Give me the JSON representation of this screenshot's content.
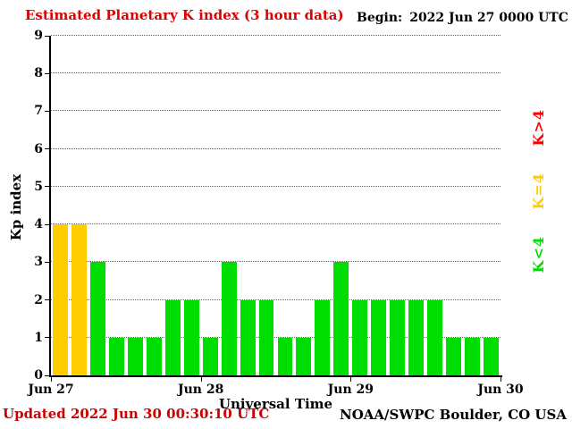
{
  "header": {
    "begin_label": "Begin:",
    "begin_value": "2022 Jun 27 0000 UTC"
  },
  "footer": {
    "updated": "Updated 2022 Jun 30 00:30:10 UTC",
    "source": "NOAA/SWPC Boulder, CO USA"
  },
  "legend": {
    "gt4": {
      "label": "K>4",
      "color": "#ff0000"
    },
    "eq4": {
      "label": "K=4",
      "color": "#ffcc00"
    },
    "lt4": {
      "label": "K<4",
      "color": "#00dd00"
    }
  },
  "chart_data": {
    "type": "bar",
    "title": "Estimated Planetary K index (3 hour data)",
    "xlabel": "Universal Time",
    "ylabel": "Kp index",
    "ylim": [
      0,
      9
    ],
    "yticks": [
      0,
      1,
      2,
      3,
      4,
      5,
      6,
      7,
      8,
      9
    ],
    "xticks": [
      "Jun 27",
      "Jun 28",
      "Jun 29",
      "Jun 30"
    ],
    "bar_interval_hours": 3,
    "values": [
      4,
      4,
      3,
      1,
      1,
      1,
      2,
      2,
      1,
      3,
      2,
      2,
      1,
      1,
      2,
      3,
      2,
      2,
      2,
      2,
      2,
      1,
      1,
      1
    ],
    "colors": {
      "gt4": "#ff0000",
      "eq4": "#ffcc00",
      "lt4": "#00dd00"
    },
    "grid": "horizontal-dotted",
    "legend_position": "right-vertical"
  }
}
